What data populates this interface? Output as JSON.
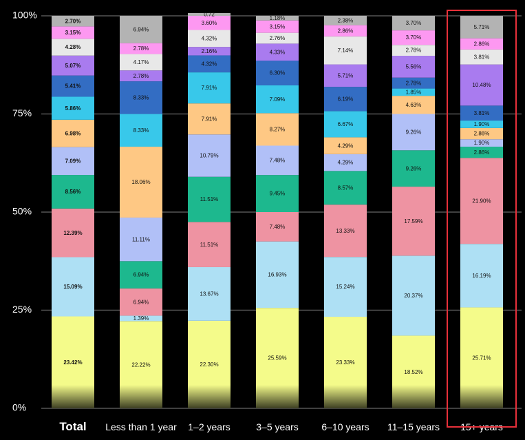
{
  "chart_data": {
    "type": "bar",
    "stacked": true,
    "normalized": true,
    "categories": [
      "Total",
      "Less than 1 year",
      "1–2 years",
      "3–5 years",
      "6–10 years",
      "11–15 years",
      "15+ years"
    ],
    "highlighted_category": "15+ years",
    "highlight_color": "#e8303a",
    "ylim": [
      0,
      100
    ],
    "yticks": [
      0,
      25,
      50,
      75,
      100
    ],
    "ytick_labels": [
      "0%",
      "25%",
      "50%",
      "75%",
      "100%"
    ],
    "grid": true,
    "legend": "none",
    "series": [
      {
        "color": "#f4fb8a",
        "values": [
          23.42,
          22.22,
          22.3,
          25.59,
          23.33,
          18.52,
          25.71
        ]
      },
      {
        "color": "#aee0f4",
        "values": [
          15.09,
          1.39,
          13.67,
          16.93,
          15.24,
          20.37,
          16.19
        ]
      },
      {
        "color": "#ee93a2",
        "values": [
          12.39,
          6.94,
          11.51,
          7.48,
          13.33,
          17.59,
          21.9
        ]
      },
      {
        "color": "#1db88e",
        "values": [
          8.56,
          6.94,
          11.51,
          9.45,
          8.57,
          9.26,
          2.86
        ]
      },
      {
        "color": "#b1c0f7",
        "values": [
          7.09,
          11.11,
          10.79,
          7.48,
          4.29,
          9.26,
          1.9
        ]
      },
      {
        "color": "#fec884",
        "values": [
          6.98,
          18.06,
          7.91,
          8.27,
          4.29,
          4.63,
          2.86
        ]
      },
      {
        "color": "#38c8ea",
        "values": [
          5.86,
          8.33,
          7.91,
          7.09,
          6.67,
          1.85,
          1.9
        ]
      },
      {
        "color": "#336dc3",
        "values": [
          5.41,
          8.33,
          4.32,
          6.3,
          6.19,
          2.78,
          3.81
        ]
      },
      {
        "color": "#a97bef",
        "values": [
          5.07,
          2.78,
          2.16,
          4.33,
          5.71,
          5.56,
          10.48
        ]
      },
      {
        "color": "#e8e8e8",
        "values": [
          4.28,
          4.17,
          4.32,
          2.76,
          7.14,
          2.78,
          3.81
        ]
      },
      {
        "color": "#fd98f1",
        "values": [
          3.15,
          2.78,
          3.6,
          3.15,
          2.86,
          3.7,
          2.86
        ]
      },
      {
        "color": "#b3b3b3",
        "values": [
          2.7,
          6.94,
          0.72,
          1.18,
          2.38,
          3.7,
          5.71
        ]
      }
    ],
    "data_labels": [
      [
        "23.42%",
        "22.22%",
        "22.30%",
        "25.59%",
        "23.33%",
        "18.52%",
        "25.71%"
      ],
      [
        "15.09%",
        "1.39%",
        "13.67%",
        "16.93%",
        "15.24%",
        "20.37%",
        "16.19%"
      ],
      [
        "12.39%",
        "6.94%",
        "11.51%",
        "7.48%",
        "13.33%",
        "17.59%",
        "21.90%"
      ],
      [
        "8.56%",
        "6.94%",
        "11.51%",
        "9.45%",
        "8.57%",
        "9.26%",
        "2.86%"
      ],
      [
        "7.09%",
        "11.11%",
        "10.79%",
        "7.48%",
        "4.29%",
        "9.26%",
        "1.90%"
      ],
      [
        "6.98%",
        "18.06%",
        "7.91%",
        "8.27%",
        "4.29%",
        "4.63%",
        "2.86%"
      ],
      [
        "5.86%",
        "8.33%",
        "7.91%",
        "7.09%",
        "6.67%",
        "1.85%",
        "1.90%"
      ],
      [
        "5.41%",
        "8.33%",
        "4.32%",
        "6.30%",
        "6.19%",
        "2.78%",
        "3.81%"
      ],
      [
        "5.07%",
        "2.78%",
        "2.16%",
        "4.33%",
        "5.71%",
        "5.56%",
        "10.48%"
      ],
      [
        "4.28%",
        "4.17%",
        "4.32%",
        "2.76%",
        "7.14%",
        "2.78%",
        "3.81%"
      ],
      [
        "3.15%",
        "2.78%",
        "3.60%",
        "3.15%",
        "2.86%",
        "3.70%",
        "2.86%"
      ],
      [
        "2.70%",
        "6.94%",
        "0.72",
        "1.18%",
        "2.38%",
        "3.70%",
        "5.71%"
      ]
    ]
  }
}
